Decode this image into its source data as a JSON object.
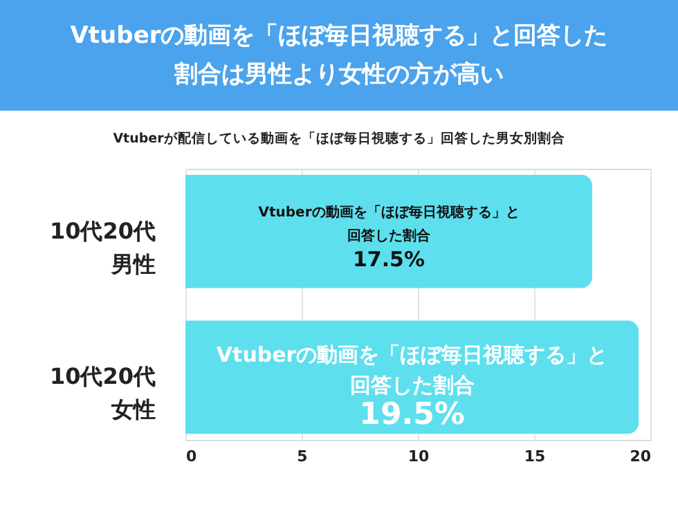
{
  "chart_data": {
    "type": "bar",
    "orientation": "horizontal",
    "title": "Vtuberの動画を「ほぼ毎日視聴する」と回答した割合は男性より女性の方が高い",
    "subtitle": "Vtuberが配信している動画を「ほぼ毎日視聴する」回答した男女別割合",
    "categories": [
      "10代20代男性",
      "10代20代女性"
    ],
    "values": [
      17.5,
      19.5
    ],
    "color": "#5ddfee",
    "value_labels": [
      "17.5%",
      "19.5%"
    ],
    "annotations": [
      "Vtuberの動画を「ほぼ毎日視聴する」と回答した割合",
      "Vtuberの動画を「ほぼ毎日視聴する」と回答した割合"
    ],
    "xlim": [
      0,
      20
    ],
    "xticks": [
      0,
      5,
      10,
      15,
      20
    ],
    "grid": "x"
  }
}
